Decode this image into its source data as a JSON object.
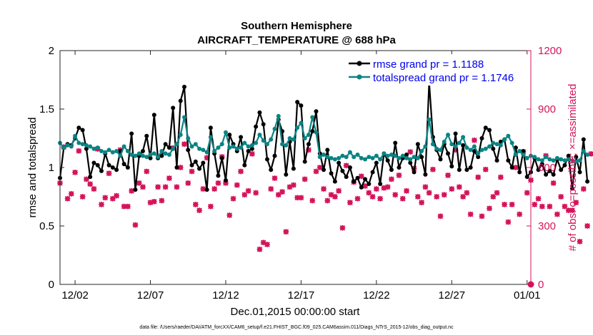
{
  "chart_data": {
    "type": "line",
    "title": "Southern Hemisphere",
    "subtitle": "AIRCRAFT_TEMPERATURE @ 688 hPa",
    "xlabel": "Dec.01,2015 00:00:00 start",
    "ylabel_left": "rmse and totalspread",
    "ylabel_right": "# of obs: o=possible; ×=assimilated",
    "footer": "data file: /Users/raeder/DAI/ATM_forcXX/CAM6_setup/f.e21.FHIST_BGC.f09_025.CAM6assim.011/Diags_NTrS_2015-12/obs_diag_output.nc",
    "xlim": [
      0,
      31.25
    ],
    "ylim_left": [
      0,
      2
    ],
    "ylim_right": [
      0,
      1200
    ],
    "x_tick_values": [
      1,
      6,
      11,
      16,
      21,
      26,
      31
    ],
    "x_tick_labels": [
      "12/02",
      "12/07",
      "12/12",
      "12/17",
      "12/22",
      "12/27",
      "01/01"
    ],
    "y_left_ticks": [
      "0",
      "0.5",
      "1",
      "1.5",
      "2"
    ],
    "y_right_ticks": [
      "0",
      "300",
      "600",
      "900",
      "1200"
    ],
    "legend": [
      {
        "label": "rmse grand pr = 1.1188",
        "color": "#000000"
      },
      {
        "label": "totalspread grand pr = 1.1746",
        "color": "#0b8383"
      }
    ],
    "x_start": 0,
    "x_step": 0.25,
    "series": [
      {
        "name": "rmse",
        "color": "#000000",
        "values": [
          0.91,
          1.17,
          1.2,
          1.19,
          1.25,
          1.34,
          1.32,
          1.16,
          0.92,
          1.04,
          1.02,
          0.97,
          1.12,
          1.02,
          1.0,
          0.98,
          1.14,
          1.03,
          1.0,
          1.29,
          0.81,
          1.1,
          1.14,
          1.27,
          1.08,
          1.45,
          1.08,
          1.1,
          1.2,
          1.17,
          1.51,
          1.0,
          1.57,
          1.69,
          1.15,
          1.02,
          1.05,
          0.99,
          1.04,
          0.81,
          1.34,
          1.12,
          0.93,
          1.08,
          0.89,
          1.28,
          1.2,
          1.14,
          1.26,
          1.02,
          1.14,
          1.16,
          1.35,
          1.47,
          1.37,
          1.07,
          0.98,
          1.1,
          1.41,
          1.31,
          0.94,
          1.22,
          0.99,
          1.56,
          1.53,
          1.05,
          1.2,
          1.31,
          1.48,
          1.12,
          0.98,
          1.15,
          0.95,
          0.88,
          1.04,
          0.97,
          0.92,
          1.0,
          0.88,
          0.91,
          0.83,
          0.9,
          0.86,
          0.96,
          1.04,
          0.86,
          1.12,
          1.06,
          0.98,
          1.21,
          1.0,
          1.08,
          1.11,
          1.04,
          0.96,
          1.2,
          1.09,
          0.94,
          1.73,
          1.26,
          1.15,
          1.07,
          1.2,
          1.12,
          1.01,
          1.29,
          0.98,
          1.19,
          0.98,
          1.0,
          1.14,
          1.09,
          1.25,
          1.34,
          1.32,
          1.16,
          1.06,
          1.22,
          1.24,
          1.06,
          1.0,
          1.17,
          0.96,
          1.14,
          0.92,
          0.96,
          1.08,
          0.98,
          1.03,
          0.94,
          0.97,
          0.94,
          1.07,
          0.98,
          1.02,
          1.1,
          0.82,
          1.09,
          0.96,
          1.24,
          0.88
        ]
      },
      {
        "name": "totalspread",
        "color": "#0b8383",
        "values": [
          1.21,
          1.17,
          1.19,
          1.18,
          1.27,
          1.21,
          1.2,
          1.19,
          1.18,
          1.16,
          1.17,
          1.14,
          1.13,
          1.15,
          1.13,
          1.14,
          1.1,
          1.18,
          1.14,
          1.11,
          1.1,
          1.12,
          1.1,
          1.09,
          1.11,
          1.12,
          1.09,
          1.14,
          1.12,
          1.11,
          1.16,
          1.2,
          1.28,
          1.43,
          1.25,
          1.18,
          1.2,
          1.16,
          1.15,
          1.13,
          1.26,
          1.14,
          1.17,
          1.2,
          1.3,
          1.17,
          1.18,
          1.16,
          1.17,
          1.21,
          1.18,
          1.19,
          1.21,
          1.28,
          1.23,
          1.2,
          1.24,
          1.33,
          1.44,
          1.2,
          1.19,
          1.25,
          1.24,
          1.34,
          1.38,
          1.25,
          1.28,
          1.43,
          1.3,
          1.09,
          1.11,
          1.09,
          1.08,
          1.07,
          1.08,
          1.1,
          1.09,
          1.13,
          1.09,
          1.11,
          1.08,
          1.07,
          1.09,
          1.08,
          1.1,
          1.07,
          1.12,
          1.1,
          1.11,
          1.1,
          1.08,
          1.1,
          1.08,
          1.07,
          1.09,
          1.08,
          1.14,
          1.18,
          1.41,
          1.2,
          1.16,
          1.15,
          1.22,
          1.28,
          1.2,
          1.18,
          1.21,
          1.26,
          1.17,
          1.15,
          1.18,
          1.12,
          1.15,
          1.16,
          1.18,
          1.21,
          1.2,
          1.19,
          1.24,
          1.27,
          1.21,
          1.11,
          1.14,
          1.11,
          1.08,
          1.1,
          1.09,
          1.07,
          1.06,
          1.09,
          1.07,
          1.06,
          1.08,
          1.07,
          1.06,
          1.07,
          1.06,
          1.05,
          1.06,
          1.14,
          1.11
        ]
      },
      {
        "name": "obs_possible",
        "axis": "right",
        "color": "#d4145a",
        "marker": "o",
        "values": [
          520,
          705,
          440,
          465,
          575,
          685,
          450,
          540,
          515,
          490,
          695,
          410,
          445,
          570,
          440,
          455,
          690,
          400,
          400,
          480,
          305,
          520,
          500,
          580,
          420,
          425,
          500,
          430,
          500,
          545,
          700,
          500,
          600,
          720,
          520,
          580,
          410,
          380,
          490,
          650,
          400,
          490,
          520,
          655,
          520,
          355,
          440,
          510,
          580,
          460,
          480,
          670,
          470,
          180,
          215,
          205,
          490,
          545,
          460,
          475,
          270,
          500,
          510,
          445,
          445,
          540,
          690,
          430,
          580,
          600,
          490,
          430,
          460,
          450,
          480,
          290,
          610,
          420,
          525,
          440,
          555,
          505,
          470,
          450,
          490,
          440,
          495,
          500,
          540,
          460,
          560,
          440,
          480,
          680,
          595,
          450,
          420,
          500,
          470,
          590,
          450,
          350,
          460,
          560,
          490,
          690,
          500,
          450,
          470,
          360,
          740,
          550,
          350,
          590,
          390,
          450,
          470,
          550,
          410,
          320,
          410,
          600,
          360,
          680,
          470,
          535,
          410,
          440,
          400,
          660,
          400,
          520,
          360,
          450,
          400,
          380,
          380,
          420,
          220,
          490,
          300,
          670
        ]
      },
      {
        "name": "obs_assimilated",
        "axis": "right",
        "color": "#d4145a",
        "marker": "x",
        "values": [
          520,
          705,
          440,
          465,
          575,
          685,
          450,
          540,
          515,
          490,
          695,
          410,
          445,
          570,
          440,
          455,
          690,
          400,
          400,
          480,
          305,
          520,
          500,
          580,
          420,
          425,
          500,
          430,
          500,
          545,
          700,
          500,
          600,
          720,
          520,
          580,
          410,
          380,
          490,
          650,
          400,
          490,
          520,
          655,
          520,
          355,
          440,
          510,
          580,
          460,
          480,
          670,
          470,
          180,
          215,
          205,
          490,
          545,
          460,
          475,
          270,
          500,
          510,
          445,
          445,
          540,
          690,
          430,
          580,
          600,
          490,
          430,
          460,
          450,
          480,
          290,
          610,
          420,
          525,
          440,
          555,
          505,
          470,
          450,
          490,
          440,
          495,
          500,
          540,
          460,
          560,
          440,
          480,
          680,
          595,
          450,
          420,
          500,
          470,
          590,
          450,
          350,
          460,
          560,
          490,
          690,
          500,
          450,
          470,
          360,
          740,
          550,
          350,
          590,
          390,
          450,
          470,
          550,
          410,
          320,
          410,
          600,
          360,
          680,
          470,
          535,
          410,
          440,
          400,
          660,
          400,
          520,
          360,
          450,
          400,
          380,
          380,
          420,
          220,
          490,
          300,
          670
        ]
      }
    ],
    "right_axis_end_marker": {
      "x": 31.25,
      "value": 0
    }
  }
}
